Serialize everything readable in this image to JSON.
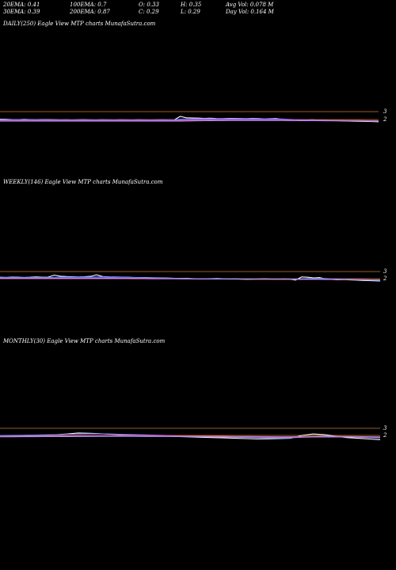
{
  "header": {
    "row1": [
      "20EMA: 0.41",
      "100EMA: 0.7",
      "O: 0.33",
      "H: 0.35",
      "Avg Vol: 0.078 M"
    ],
    "row2": [
      "30EMA: 0.39",
      "200EMA: 0.87",
      "C: 0.29",
      "L: 0.29",
      "Day Vol: 0.164 M"
    ]
  },
  "panels": [
    {
      "title": "DAILY(250) Eagle View MTP charts MunafaSutra.com"
    },
    {
      "title": "WEEKLY(146) Eagle View MTP charts MunafaSutra.com"
    },
    {
      "title": "MONTHLY(30) Eagle View MTP charts MunafaSutra.com"
    }
  ],
  "colors": {
    "background": "#000000",
    "reference_line": "#c87a28",
    "price": "#ffffff",
    "ema_fast": "#4f7dff",
    "ema_slow": "#c040ff",
    "ema_long": "#ff5a8a",
    "ema_extra": "#9aa0ff"
  },
  "chart_data": [
    {
      "type": "line",
      "name": "DAILY(250)",
      "y_ticks": [
        "3",
        "2"
      ],
      "series": [
        {
          "key": "price",
          "values": [
            2.05,
            2.03,
            2.0,
            1.98,
            2.02,
            2.0,
            1.97,
            1.99,
            2.0,
            1.98,
            1.96,
            1.97,
            1.95,
            1.97,
            1.98,
            1.96,
            1.95,
            1.97,
            1.96,
            1.95,
            1.97,
            1.96,
            1.95,
            1.97,
            1.96,
            1.95,
            1.96,
            1.97,
            1.96,
            1.95,
            2.4,
            2.22,
            2.2,
            2.18,
            2.15,
            2.17,
            2.13,
            2.12,
            2.15,
            2.14,
            2.13,
            2.12,
            2.15,
            2.13,
            2.1,
            2.12,
            2.14,
            2.0,
            1.95,
            1.9,
            1.92,
            1.95,
            1.97,
            1.93,
            1.9,
            1.88,
            1.86,
            1.83,
            1.8,
            1.78,
            1.77,
            1.75,
            1.74,
            1.72
          ]
        },
        {
          "key": "ema_fast",
          "values": [
            1.98,
            1.98,
            1.97,
            1.97,
            1.97,
            1.97,
            1.96,
            1.96,
            1.96,
            1.96,
            1.96,
            1.96,
            1.96,
            1.96,
            1.96,
            1.96,
            1.96,
            1.96,
            1.96,
            1.96,
            1.96,
            1.96,
            1.96,
            1.96,
            1.96,
            1.96,
            1.96,
            1.96,
            1.96,
            1.96,
            2.05,
            2.08,
            2.1,
            2.1,
            2.1,
            2.1,
            2.1,
            2.1,
            2.1,
            2.1,
            2.1,
            2.1,
            2.1,
            2.1,
            2.1,
            2.1,
            2.1,
            2.07,
            2.04,
            2.0,
            1.98,
            1.97,
            1.96,
            1.95,
            1.93,
            1.91,
            1.89,
            1.87,
            1.85,
            1.83,
            1.81,
            1.8,
            1.78,
            1.77
          ]
        },
        {
          "key": "ema_slow",
          "values": [
            1.92,
            1.92,
            1.92,
            1.92,
            1.92,
            1.92,
            1.92,
            1.92,
            1.92,
            1.92,
            1.92,
            1.92,
            1.92,
            1.92,
            1.92,
            1.92,
            1.92,
            1.92,
            1.92,
            1.92,
            1.92,
            1.92,
            1.92,
            1.92,
            1.92,
            1.92,
            1.92,
            1.92,
            1.92,
            1.92,
            1.95,
            1.97,
            1.98,
            1.99,
            2.0,
            2.0,
            2.0,
            2.0,
            2.0,
            2.0,
            2.0,
            2.0,
            2.0,
            2.0,
            2.0,
            2.0,
            2.0,
            1.99,
            1.98,
            1.97,
            1.96,
            1.95,
            1.94,
            1.93,
            1.92,
            1.91,
            1.9,
            1.89,
            1.88,
            1.87,
            1.86,
            1.85,
            1.84,
            1.83
          ]
        },
        {
          "key": "ema_long",
          "values": [
            1.85,
            1.85,
            1.85,
            1.85,
            1.85,
            1.85,
            1.85,
            1.85,
            1.85,
            1.85,
            1.85,
            1.85,
            1.85,
            1.85,
            1.85,
            1.85,
            1.85,
            1.85,
            1.85,
            1.85,
            1.85,
            1.85,
            1.85,
            1.85,
            1.85,
            1.85,
            1.85,
            1.85,
            1.85,
            1.85,
            1.86,
            1.88,
            1.9,
            1.91,
            1.92,
            1.93,
            1.93,
            1.94,
            1.94,
            1.94,
            1.94,
            1.94,
            1.94,
            1.94,
            1.94,
            1.94,
            1.94,
            1.93,
            1.93,
            1.92,
            1.92,
            1.91,
            1.91,
            1.9,
            1.9,
            1.89,
            1.89,
            1.88,
            1.88,
            1.87,
            1.87,
            1.86,
            1.86,
            1.85
          ]
        },
        {
          "key": "ema_extra",
          "values": [
            1.8,
            1.8,
            1.8,
            1.8,
            1.8,
            1.8,
            1.8,
            1.8,
            1.8,
            1.8,
            1.8,
            1.8,
            1.8,
            1.8,
            1.8,
            1.8,
            1.8,
            1.8,
            1.8,
            1.8,
            1.8,
            1.8,
            1.8,
            1.8,
            1.8,
            1.8,
            1.8,
            1.8,
            1.8,
            1.8,
            1.8,
            1.81,
            1.82,
            1.83,
            1.84,
            1.85,
            1.86,
            1.86,
            1.87,
            1.87,
            1.87,
            1.87,
            1.87,
            1.87,
            1.87,
            1.87,
            1.87,
            1.87,
            1.86,
            1.86,
            1.85,
            1.85,
            1.84,
            1.84,
            1.83,
            1.83,
            1.82,
            1.82,
            1.81,
            1.81,
            1.8,
            1.8,
            1.79,
            1.79
          ]
        }
      ]
    },
    {
      "type": "line",
      "name": "WEEKLY(146)",
      "y_ticks": [
        "3",
        "2"
      ],
      "series": [
        {
          "key": "price",
          "values": [
            2.2,
            2.18,
            2.22,
            2.2,
            2.18,
            2.2,
            2.25,
            2.2,
            2.22,
            2.5,
            2.35,
            2.3,
            2.28,
            2.25,
            2.27,
            2.32,
            2.55,
            2.3,
            2.26,
            2.24,
            2.22,
            2.2,
            2.18,
            2.16,
            2.15,
            2.13,
            2.12,
            2.1,
            2.08,
            2.06,
            2.05,
            2.04,
            2.0,
            1.95,
            1.98,
            2.0,
            2.02,
            1.98,
            1.95,
            1.97,
            1.93,
            1.9,
            1.92,
            1.95,
            1.97,
            1.93,
            1.92,
            1.95,
            1.92,
            1.8,
            2.25,
            2.2,
            2.1,
            2.15,
            1.95,
            1.9,
            1.85,
            1.88,
            1.82,
            1.8,
            1.76,
            1.73,
            1.7,
            1.68
          ]
        },
        {
          "key": "ema_fast",
          "values": [
            2.15,
            2.15,
            2.15,
            2.15,
            2.15,
            2.15,
            2.16,
            2.16,
            2.16,
            2.2,
            2.22,
            2.22,
            2.22,
            2.22,
            2.22,
            2.22,
            2.25,
            2.24,
            2.23,
            2.22,
            2.2,
            2.19,
            2.17,
            2.16,
            2.14,
            2.12,
            2.11,
            2.09,
            2.07,
            2.06,
            2.04,
            2.03,
            2.01,
            1.99,
            1.98,
            1.98,
            1.98,
            1.98,
            1.97,
            1.96,
            1.95,
            1.93,
            1.93,
            1.93,
            1.93,
            1.93,
            1.93,
            1.93,
            1.93,
            1.9,
            1.98,
            2.02,
            2.03,
            2.05,
            2.02,
            1.98,
            1.94,
            1.92,
            1.89,
            1.87,
            1.84,
            1.81,
            1.78,
            1.76
          ]
        },
        {
          "key": "ema_slow",
          "values": [
            2.08,
            2.08,
            2.08,
            2.08,
            2.08,
            2.08,
            2.08,
            2.08,
            2.08,
            2.09,
            2.1,
            2.1,
            2.1,
            2.1,
            2.1,
            2.1,
            2.11,
            2.11,
            2.11,
            2.11,
            2.1,
            2.09,
            2.09,
            2.08,
            2.07,
            2.06,
            2.05,
            2.04,
            2.03,
            2.02,
            2.01,
            2.0,
            1.99,
            1.98,
            1.97,
            1.96,
            1.96,
            1.95,
            1.95,
            1.94,
            1.94,
            1.93,
            1.93,
            1.92,
            1.92,
            1.92,
            1.91,
            1.91,
            1.91,
            1.9,
            1.91,
            1.92,
            1.93,
            1.93,
            1.92,
            1.91,
            1.9,
            1.89,
            1.88,
            1.87,
            1.85,
            1.84,
            1.82,
            1.81
          ]
        },
        {
          "key": "ema_long",
          "values": [
            2.0,
            2.0,
            2.0,
            2.0,
            2.0,
            2.0,
            2.0,
            2.0,
            2.0,
            2.0,
            2.0,
            2.0,
            2.0,
            2.0,
            2.0,
            2.0,
            2.0,
            2.0,
            2.0,
            2.0,
            2.0,
            2.0,
            1.99,
            1.99,
            1.99,
            1.98,
            1.98,
            1.98,
            1.97,
            1.97,
            1.96,
            1.96,
            1.96,
            1.95,
            1.95,
            1.94,
            1.94,
            1.94,
            1.93,
            1.93,
            1.92,
            1.92,
            1.92,
            1.91,
            1.91,
            1.91,
            1.9,
            1.9,
            1.9,
            1.89,
            1.89,
            1.89,
            1.89,
            1.89,
            1.88,
            1.88,
            1.87,
            1.87,
            1.86,
            1.86,
            1.85,
            1.85,
            1.84,
            1.84
          ]
        },
        {
          "key": "ema_extra",
          "values": [
            2.04,
            2.04,
            2.04,
            2.04,
            2.04,
            2.04,
            2.04,
            2.04,
            2.04,
            2.05,
            2.05,
            2.05,
            2.05,
            2.05,
            2.05,
            2.05,
            2.06,
            2.06,
            2.06,
            2.05,
            2.05,
            2.05,
            2.04,
            2.04,
            2.03,
            2.03,
            2.02,
            2.01,
            2.01,
            2.0,
            1.99,
            1.99,
            1.98,
            1.97,
            1.97,
            1.96,
            1.96,
            1.95,
            1.95,
            1.95,
            1.94,
            1.94,
            1.93,
            1.93,
            1.93,
            1.92,
            1.92,
            1.92,
            1.91,
            1.91,
            1.92,
            1.93,
            1.93,
            1.93,
            1.92,
            1.92,
            1.91,
            1.9,
            1.89,
            1.88,
            1.87,
            1.86,
            1.85,
            1.84
          ]
        }
      ]
    },
    {
      "type": "line",
      "name": "MONTHLY(30)",
      "y_ticks": [
        "3",
        "2"
      ],
      "series": [
        {
          "key": "price",
          "values": [
            1.95,
            1.97,
            2.0,
            2.03,
            2.06,
            2.1,
            2.2,
            2.35,
            2.3,
            2.25,
            2.15,
            2.1,
            2.05,
            2.0,
            1.95,
            1.9,
            1.85,
            1.8,
            1.75,
            1.7,
            1.65,
            1.6,
            1.55,
            1.5,
            1.52,
            1.55,
            1.6,
            2.0,
            2.2,
            2.1,
            1.9,
            1.7,
            1.6,
            1.5,
            1.4
          ]
        },
        {
          "key": "ema_fast",
          "values": [
            2.0,
            2.01,
            2.03,
            2.05,
            2.08,
            2.1,
            2.15,
            2.2,
            2.22,
            2.22,
            2.2,
            2.16,
            2.12,
            2.08,
            2.04,
            2.0,
            1.96,
            1.92,
            1.88,
            1.84,
            1.8,
            1.76,
            1.72,
            1.68,
            1.65,
            1.64,
            1.65,
            1.75,
            1.85,
            1.9,
            1.88,
            1.82,
            1.76,
            1.7,
            1.64
          ]
        },
        {
          "key": "ema_slow",
          "values": [
            1.85,
            1.86,
            1.87,
            1.88,
            1.89,
            1.9,
            1.92,
            1.95,
            1.97,
            1.98,
            1.98,
            1.98,
            1.97,
            1.96,
            1.95,
            1.93,
            1.91,
            1.89,
            1.87,
            1.85,
            1.83,
            1.81,
            1.79,
            1.77,
            1.75,
            1.74,
            1.74,
            1.78,
            1.82,
            1.85,
            1.85,
            1.83,
            1.8,
            1.77,
            1.74
          ]
        },
        {
          "key": "ema_long",
          "values": [
            1.9,
            1.9,
            1.91,
            1.91,
            1.92,
            1.93,
            1.94,
            1.96,
            1.98,
            1.99,
            2.0,
            2.0,
            1.99,
            1.98,
            1.97,
            1.96,
            1.95,
            1.93,
            1.92,
            1.9,
            1.89,
            1.87,
            1.86,
            1.84,
            1.83,
            1.82,
            1.82,
            1.84,
            1.86,
            1.87,
            1.87,
            1.86,
            1.84,
            1.82,
            1.8
          ]
        },
        {
          "key": "ema_extra",
          "values": [
            1.8,
            1.8,
            1.81,
            1.81,
            1.82,
            1.82,
            1.83,
            1.84,
            1.85,
            1.86,
            1.86,
            1.86,
            1.86,
            1.85,
            1.85,
            1.84,
            1.83,
            1.82,
            1.81,
            1.8,
            1.79,
            1.78,
            1.77,
            1.76,
            1.75,
            1.74,
            1.74,
            1.75,
            1.77,
            1.78,
            1.78,
            1.78,
            1.77,
            1.76,
            1.74
          ]
        }
      ]
    }
  ]
}
